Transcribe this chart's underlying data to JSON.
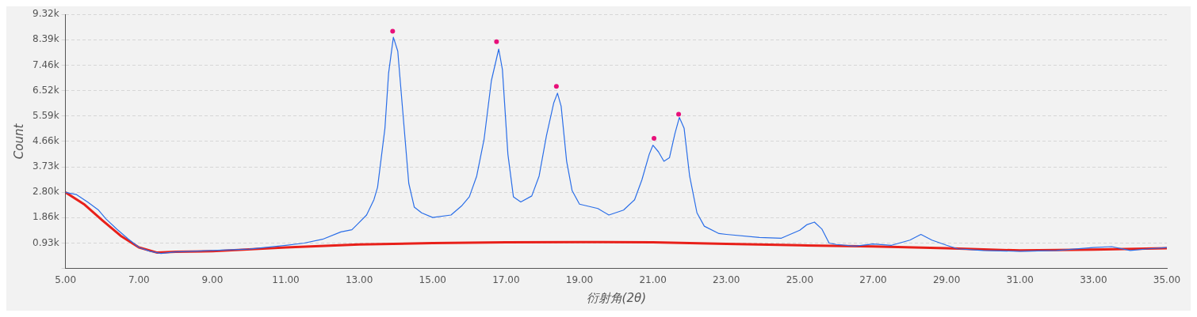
{
  "chart_data": {
    "type": "line",
    "xlabel": "衍射角(2θ)",
    "ylabel": "Count",
    "xlim": [
      5,
      35
    ],
    "ylim": [
      0,
      9320
    ],
    "xticks": [
      {
        "value": 5,
        "label": "5.00"
      },
      {
        "value": 7,
        "label": "7.00"
      },
      {
        "value": 9,
        "label": "9.00"
      },
      {
        "value": 11,
        "label": "11.00"
      },
      {
        "value": 13,
        "label": "13.00"
      },
      {
        "value": 15,
        "label": "15.00"
      },
      {
        "value": 17,
        "label": "17.00"
      },
      {
        "value": 19,
        "label": "19.00"
      },
      {
        "value": 21,
        "label": "21.00"
      },
      {
        "value": 23,
        "label": "23.00"
      },
      {
        "value": 25,
        "label": "25.00"
      },
      {
        "value": 27,
        "label": "27.00"
      },
      {
        "value": 29,
        "label": "29.00"
      },
      {
        "value": 31,
        "label": "31.00"
      },
      {
        "value": 33,
        "label": "33.00"
      },
      {
        "value": 35,
        "label": "35.00"
      }
    ],
    "yticks": [
      {
        "value": 0,
        "label": null
      },
      {
        "value": 932,
        "label": "0.93k"
      },
      {
        "value": 1864,
        "label": "1.86k"
      },
      {
        "value": 2796,
        "label": "2.80k"
      },
      {
        "value": 3728,
        "label": "3.73k"
      },
      {
        "value": 4660,
        "label": "4.66k"
      },
      {
        "value": 5592,
        "label": "5.59k"
      },
      {
        "value": 6524,
        "label": "6.52k"
      },
      {
        "value": 7456,
        "label": "7.46k"
      },
      {
        "value": 8388,
        "label": "8.39k"
      },
      {
        "value": 9320,
        "label": "9.32k"
      }
    ],
    "grid": "y",
    "legend": false,
    "marker": "none",
    "line_style": "solid",
    "series": [
      {
        "type": "line",
        "color": "#2a6ee8",
        "x": [
          5.0,
          5.3,
          5.6,
          5.9,
          6.1,
          6.4,
          6.7,
          7.0,
          7.3,
          7.6,
          8.0,
          9.0,
          10.0,
          11.0,
          11.5,
          12.0,
          12.5,
          12.8,
          13.0,
          13.2,
          13.4,
          13.5,
          13.6,
          13.7,
          13.8,
          13.93,
          14.05,
          14.2,
          14.35,
          14.5,
          14.7,
          15.0,
          15.5,
          15.8,
          16.0,
          16.2,
          16.4,
          16.6,
          16.8,
          16.9,
          17.05,
          17.2,
          17.4,
          17.7,
          17.9,
          18.1,
          18.3,
          18.4,
          18.5,
          18.65,
          18.8,
          19.0,
          19.5,
          19.8,
          20.2,
          20.5,
          20.7,
          20.9,
          21.0,
          21.15,
          21.3,
          21.45,
          21.6,
          21.72,
          21.85,
          22.0,
          22.2,
          22.4,
          22.8,
          23.0,
          23.9,
          24.5,
          25.0,
          25.2,
          25.4,
          25.6,
          25.8,
          26.0,
          26.5,
          27.0,
          27.5,
          28.0,
          28.3,
          28.6,
          29.0,
          29.3,
          30.0,
          31.0,
          32.0,
          33.0,
          33.5,
          34.0,
          34.5,
          35.0
        ],
        "values": [
          2790,
          2710,
          2440,
          2140,
          1820,
          1440,
          1090,
          770,
          630,
          550,
          610,
          660,
          710,
          850,
          930,
          1070,
          1340,
          1420,
          1690,
          1960,
          2520,
          2980,
          4060,
          5140,
          7160,
          8480,
          7970,
          5540,
          3120,
          2250,
          2040,
          1870,
          1960,
          2310,
          2630,
          3390,
          4730,
          6890,
          8050,
          7300,
          4190,
          2630,
          2440,
          2660,
          3390,
          4870,
          6080,
          6430,
          5950,
          3930,
          2850,
          2360,
          2200,
          1960,
          2140,
          2520,
          3250,
          4190,
          4520,
          4280,
          3930,
          4060,
          4950,
          5540,
          5140,
          3390,
          2040,
          1550,
          1280,
          1250,
          1140,
          1110,
          1400,
          1610,
          1700,
          1450,
          930,
          880,
          820,
          900,
          850,
          1040,
          1250,
          1040,
          850,
          720,
          660,
          630,
          660,
          770,
          800,
          660,
          720,
          770
        ]
      },
      {
        "type": "line",
        "color": "#e8201a",
        "x": [
          5,
          5.5,
          6,
          6.5,
          7,
          7.5,
          8,
          9,
          11,
          13,
          15,
          17,
          19,
          21,
          23,
          25,
          27,
          29,
          31,
          33,
          35
        ],
        "values": [
          2790,
          2360,
          1770,
          1200,
          770,
          580,
          610,
          630,
          770,
          880,
          930,
          960,
          970,
          960,
          900,
          850,
          810,
          740,
          660,
          690,
          740
        ]
      },
      {
        "type": "scatter",
        "color": "#e8107a",
        "marker": "circle",
        "x": [
          13.91,
          16.74,
          18.37,
          21.03,
          21.7
        ],
        "values": [
          8700,
          8320,
          6680,
          4770,
          5660
        ]
      }
    ]
  }
}
